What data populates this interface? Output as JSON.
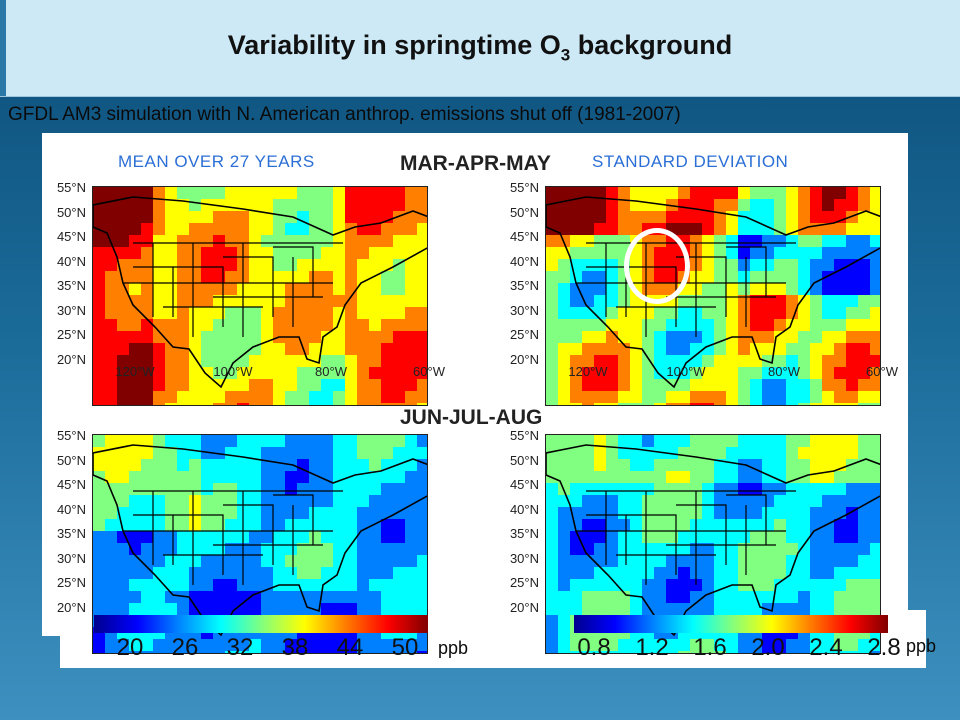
{
  "slide": {
    "title_main": "Variability in springtime O",
    "title_sub": "3",
    "title_end": " background",
    "subtitle": "GFDL AM3 simulation with N. American anthrop. emissions shut off (1981-2007)"
  },
  "figure": {
    "label_mean": "MEAN OVER 27 YEARS",
    "label_std": "STANDARD DEVIATION",
    "season_spring": "MAR-APR-MAY",
    "season_summer": "JUN-JUL-AUG",
    "lat_ticks": [
      "55°N",
      "50°N",
      "45°N",
      "40°N",
      "35°N",
      "30°N",
      "25°N",
      "20°N"
    ],
    "lon_ticks": [
      "120°W",
      "100°W",
      "80°W",
      "60°W"
    ],
    "colorbar_mean": [
      "20",
      "26",
      "32",
      "38",
      "44",
      "50"
    ],
    "colorbar_std": [
      "0.8",
      "1.2",
      "1.6",
      "2.0",
      "2.4",
      "2.8"
    ],
    "unit_mean": "ppb",
    "unit_std": "ppb"
  },
  "colors": {
    "jet": [
      "#00008f",
      "#0000ff",
      "#0080ff",
      "#00ffff",
      "#80ff80",
      "#ffff00",
      "#ff8000",
      "#ff0000",
      "#800000"
    ]
  }
}
